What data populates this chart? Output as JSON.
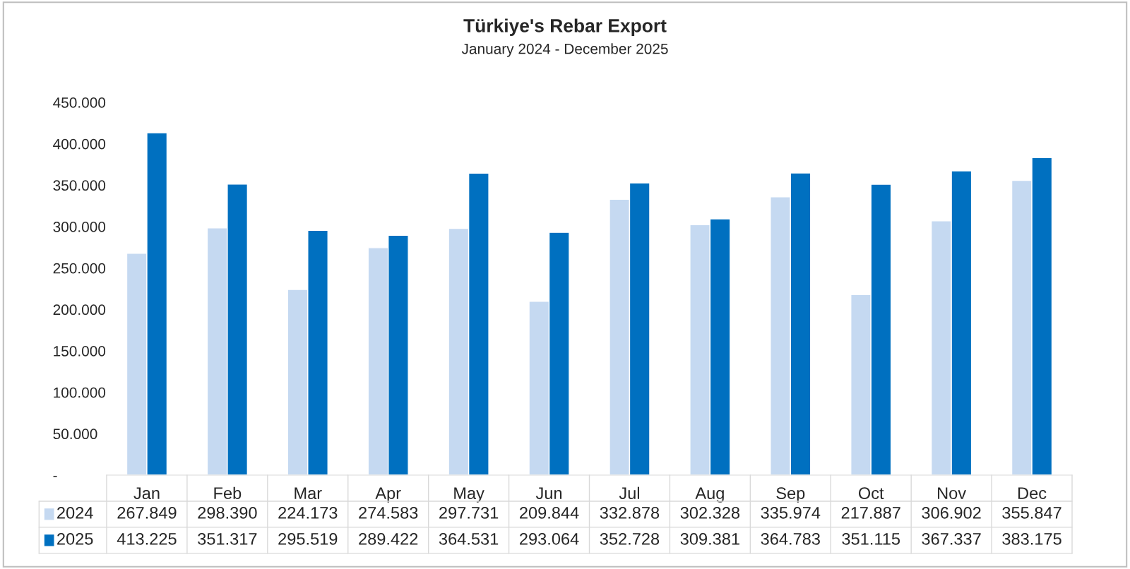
{
  "chart_data": {
    "type": "bar",
    "title": "Türkiye's Rebar Export",
    "subtitle": "January 2024 - December 2025",
    "categories": [
      "Jan",
      "Feb",
      "Mar",
      "Apr",
      "May",
      "Jun",
      "Jul",
      "Aug",
      "Sep",
      "Oct",
      "Nov",
      "Dec"
    ],
    "series": [
      {
        "name": "2024",
        "color": "#c5d9f1",
        "values": [
          267849,
          298390,
          224173,
          274583,
          297731,
          209844,
          332878,
          302328,
          335974,
          217887,
          306902,
          355847
        ],
        "value_labels": [
          "267.849",
          "298.390",
          "224.173",
          "274.583",
          "297.731",
          "209.844",
          "332.878",
          "302.328",
          "335.974",
          "217.887",
          "306.902",
          "355.847"
        ]
      },
      {
        "name": "2025",
        "color": "#0070c0",
        "values": [
          413225,
          351317,
          295519,
          289422,
          364531,
          293064,
          352728,
          309381,
          364783,
          351115,
          367337,
          383175
        ],
        "value_labels": [
          "413.225",
          "351.317",
          "295.519",
          "289.422",
          "364.531",
          "293.064",
          "352.728",
          "309.381",
          "364.783",
          "351.115",
          "367.337",
          "383.175"
        ]
      }
    ],
    "ylim": [
      0,
      450000
    ],
    "yticks": [
      {
        "value": 0,
        "label": "-"
      },
      {
        "value": 50000,
        "label": "50.000"
      },
      {
        "value": 100000,
        "label": "100.000"
      },
      {
        "value": 150000,
        "label": "150.000"
      },
      {
        "value": 200000,
        "label": "200.000"
      },
      {
        "value": 250000,
        "label": "250.000"
      },
      {
        "value": 300000,
        "label": "300.000"
      },
      {
        "value": 350000,
        "label": "350.000"
      },
      {
        "value": 400000,
        "label": "400.000"
      },
      {
        "value": 450000,
        "label": "450.000"
      }
    ],
    "grid": false,
    "legend": "bottom"
  }
}
